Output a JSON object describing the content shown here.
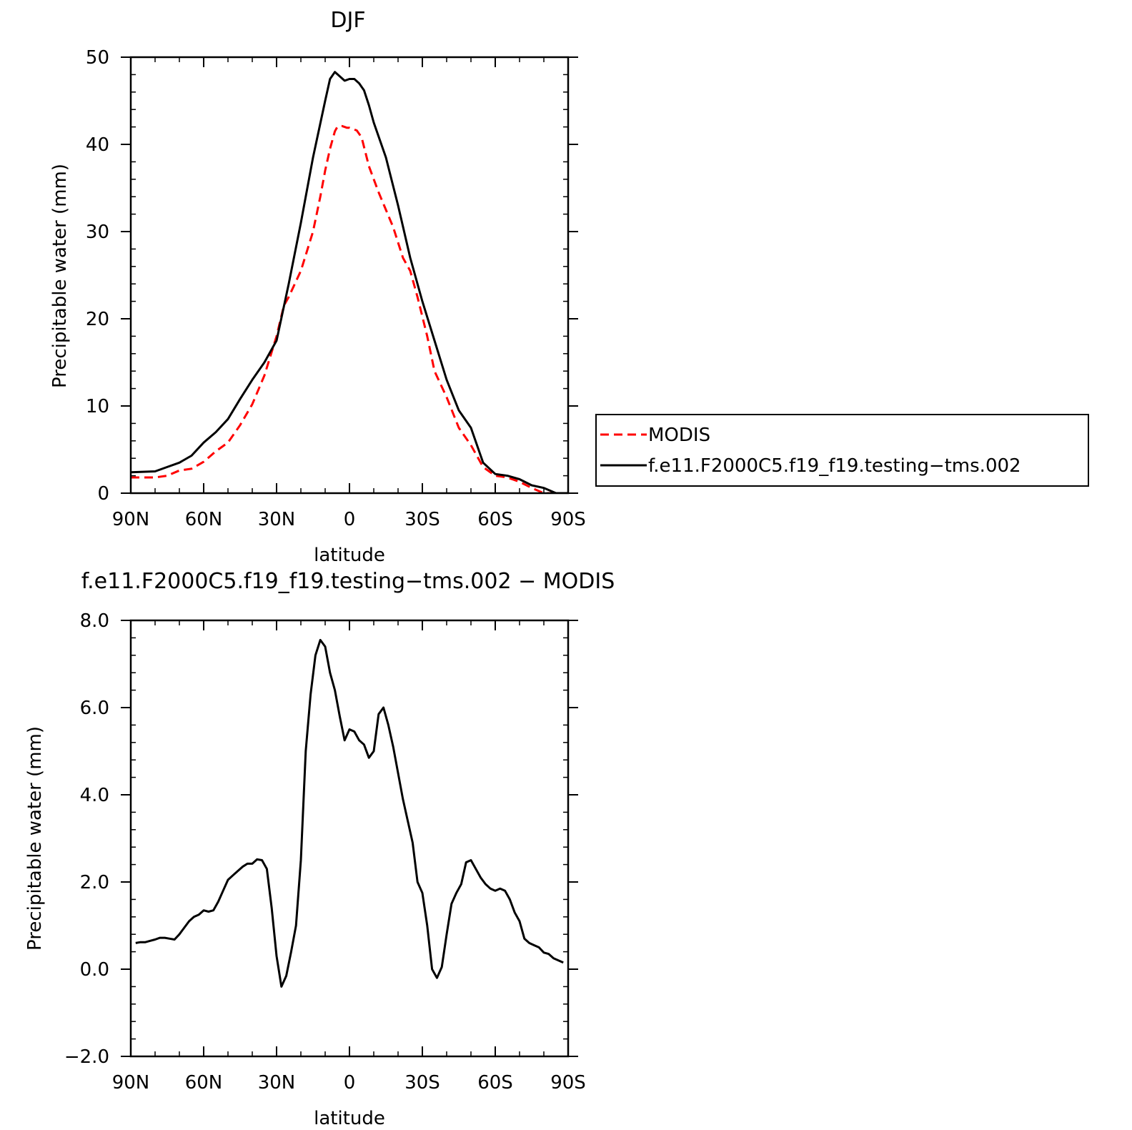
{
  "chart_data": [
    {
      "type": "line",
      "title": "DJF",
      "xlabel": "latitude",
      "ylabel": "Precipitable water (mm)",
      "xlim": [
        90,
        -90
      ],
      "ylim": [
        0,
        50
      ],
      "x_ticks": [
        {
          "value": 90,
          "label": "90N"
        },
        {
          "value": 60,
          "label": "60N"
        },
        {
          "value": 30,
          "label": "30N"
        },
        {
          "value": 0,
          "label": "0"
        },
        {
          "value": -30,
          "label": "30S"
        },
        {
          "value": -60,
          "label": "60S"
        },
        {
          "value": -90,
          "label": "90S"
        }
      ],
      "y_ticks": [
        {
          "value": 0,
          "label": "0"
        },
        {
          "value": 10,
          "label": "10"
        },
        {
          "value": 20,
          "label": "20"
        },
        {
          "value": 30,
          "label": "30"
        },
        {
          "value": 40,
          "label": "40"
        },
        {
          "value": 50,
          "label": "50"
        }
      ],
      "legend": {
        "placement": "right",
        "entries": [
          "MODIS",
          "f.e11.F2000C5.f19_f19.testing−tms.002"
        ]
      },
      "series": [
        {
          "name": "MODIS",
          "color": "#ff0000",
          "style": "dashed",
          "x": [
            90,
            80,
            75,
            70,
            65,
            60,
            55,
            50,
            45,
            40,
            35,
            30,
            27,
            25,
            20,
            15,
            12,
            10,
            8,
            6,
            5,
            4,
            3,
            2,
            1,
            0,
            -3,
            -5,
            -8,
            -12,
            -15,
            -18,
            -22,
            -25,
            -28,
            -32,
            -35,
            -40,
            -45,
            -50,
            -55,
            -60,
            -65,
            -70,
            -75,
            -80,
            -85,
            -90
          ],
          "y": [
            1.8,
            1.8,
            2.0,
            2.6,
            2.8,
            3.6,
            4.8,
            5.8,
            7.8,
            10.2,
            13.5,
            18,
            21.5,
            22.5,
            25.5,
            30,
            34,
            37,
            39.5,
            41.5,
            42,
            42.1,
            42.1,
            42.0,
            41.9,
            41.9,
            41.6,
            40.8,
            37.5,
            34.5,
            32.5,
            30.5,
            27,
            25.5,
            22.5,
            18,
            14,
            11,
            7.5,
            5.5,
            3.0,
            2.0,
            1.8,
            1.3,
            0.6,
            0.0,
            0.0,
            0.0
          ]
        },
        {
          "name": "f.e11.F2000C5.f19_f19.testing−tms.002",
          "color": "#000000",
          "style": "solid",
          "x": [
            90,
            80,
            75,
            70,
            65,
            60,
            55,
            50,
            45,
            40,
            35,
            30,
            25,
            20,
            15,
            10,
            8,
            6,
            4,
            2,
            0,
            -2,
            -4,
            -6,
            -8,
            -10,
            -15,
            -20,
            -25,
            -30,
            -35,
            -40,
            -45,
            -50,
            -55,
            -60,
            -65,
            -70,
            -75,
            -80,
            -85,
            -88,
            -90
          ],
          "y": [
            2.4,
            2.5,
            3.0,
            3.5,
            4.3,
            5.8,
            7.0,
            8.5,
            10.8,
            13.0,
            15.0,
            17.5,
            24.0,
            31.0,
            38.5,
            45.0,
            47.5,
            48.3,
            47.8,
            47.3,
            47.5,
            47.5,
            47.0,
            46.2,
            44.5,
            42.5,
            38.5,
            33.0,
            27.0,
            22.0,
            17.5,
            13.0,
            9.5,
            7.5,
            3.5,
            2.2,
            2.0,
            1.6,
            0.9,
            0.6,
            0.0,
            0.0,
            0.0
          ]
        }
      ]
    },
    {
      "type": "line",
      "title": "f.e11.F2000C5.f19_f19.testing−tms.002 − MODIS",
      "xlabel": "latitude",
      "ylabel": "Precipitable water (mm)",
      "xlim": [
        90,
        -90
      ],
      "ylim": [
        -2.0,
        8.0
      ],
      "x_ticks": [
        {
          "value": 90,
          "label": "90N"
        },
        {
          "value": 60,
          "label": "60N"
        },
        {
          "value": 30,
          "label": "30N"
        },
        {
          "value": 0,
          "label": "0"
        },
        {
          "value": -30,
          "label": "30S"
        },
        {
          "value": -60,
          "label": "60S"
        },
        {
          "value": -90,
          "label": "90S"
        }
      ],
      "y_ticks": [
        {
          "value": -2.0,
          "label": "−2.0"
        },
        {
          "value": 0.0,
          "label": "0.0"
        },
        {
          "value": 2.0,
          "label": "2.0"
        },
        {
          "value": 4.0,
          "label": "4.0"
        },
        {
          "value": 6.0,
          "label": "6.0"
        },
        {
          "value": 8.0,
          "label": "8.0"
        }
      ],
      "series": [
        {
          "color": "#000000",
          "style": "solid",
          "x": [
            88,
            86,
            84,
            82,
            80,
            78,
            76,
            74,
            72,
            70,
            68,
            66,
            64,
            62,
            60,
            58,
            56,
            54,
            52,
            50,
            48,
            46,
            44,
            42,
            40,
            38,
            36,
            34,
            32,
            30,
            28,
            26,
            24,
            22,
            20,
            18,
            16,
            14,
            12,
            10,
            8,
            6,
            4,
            2,
            0,
            -2,
            -4,
            -6,
            -8,
            -10,
            -12,
            -14,
            -16,
            -18,
            -20,
            -22,
            -24,
            -26,
            -28,
            -30,
            -32,
            -34,
            -36,
            -38,
            -40,
            -42,
            -44,
            -46,
            -48,
            -50,
            -52,
            -54,
            -56,
            -58,
            -60,
            -62,
            -64,
            -66,
            -68,
            -70,
            -72,
            -74,
            -76,
            -78,
            -80,
            -82,
            -84,
            -86,
            -88
          ],
          "y": [
            0.6,
            0.62,
            0.62,
            0.65,
            0.68,
            0.72,
            0.72,
            0.7,
            0.68,
            0.8,
            0.95,
            1.1,
            1.2,
            1.25,
            1.35,
            1.32,
            1.35,
            1.55,
            1.8,
            2.05,
            2.15,
            2.25,
            2.35,
            2.42,
            2.42,
            2.52,
            2.5,
            2.3,
            1.4,
            0.3,
            -0.4,
            -0.15,
            0.4,
            1.0,
            2.5,
            5.0,
            6.3,
            7.2,
            7.55,
            7.4,
            6.8,
            6.4,
            5.8,
            5.25,
            5.5,
            5.45,
            5.25,
            5.15,
            4.85,
            5.0,
            5.85,
            6.0,
            5.6,
            5.1,
            4.5,
            3.9,
            3.4,
            2.9,
            2.0,
            1.75,
            1.0,
            0.0,
            -0.2,
            0.05,
            0.8,
            1.5,
            1.75,
            1.95,
            2.45,
            2.5,
            2.3,
            2.1,
            1.95,
            1.85,
            1.8,
            1.85,
            1.8,
            1.6,
            1.3,
            1.1,
            0.7,
            0.6,
            0.55,
            0.5,
            0.38,
            0.35,
            0.25,
            0.2,
            0.15
          ]
        }
      ]
    }
  ]
}
